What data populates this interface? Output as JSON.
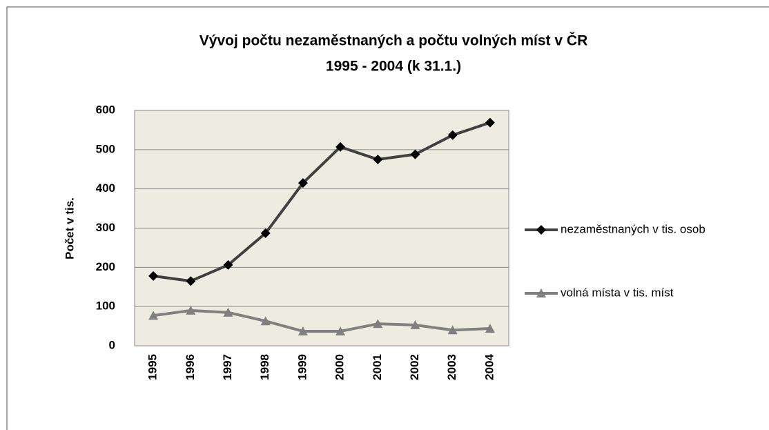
{
  "chart_data": {
    "type": "line",
    "title": [
      "Vývoj počtu nezaměstnaných a počtu volných míst v ČR",
      "1995 - 2004 (k 31.1.)"
    ],
    "y_label": "Počet v tis.",
    "categories": [
      "1995",
      "1996",
      "1997",
      "1998",
      "1999",
      "2000",
      "2001",
      "2002",
      "2003",
      "2004"
    ],
    "series": [
      {
        "name": "nezaměstnaných v tis. osob",
        "color": "#404040",
        "marker": "diamond",
        "marker_color": "#000000",
        "values": [
          178,
          165,
          206,
          287,
          415,
          507,
          475,
          488,
          537,
          569
        ]
      },
      {
        "name": "volná místa v tis. míst",
        "color": "#808080",
        "marker": "triangle",
        "marker_color": "#808080",
        "values": [
          77,
          90,
          85,
          63,
          37,
          37,
          56,
          53,
          40,
          44
        ]
      }
    ],
    "ylim": [
      0,
      600
    ],
    "yticks": [
      0,
      100,
      200,
      300,
      400,
      500,
      600
    ],
    "grid": true,
    "plot_background": "#eeece1",
    "legend": "right"
  }
}
